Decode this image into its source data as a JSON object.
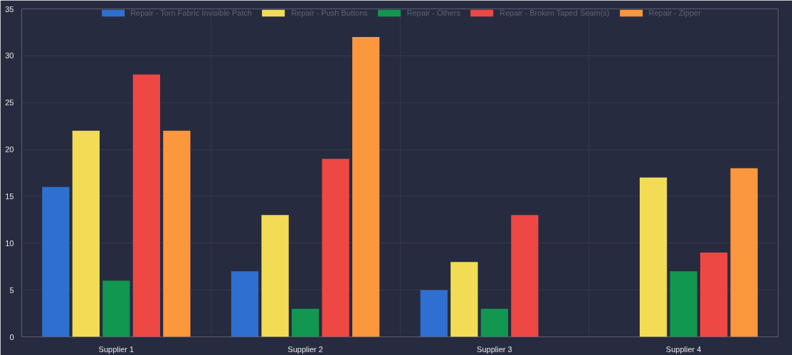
{
  "chart_data": {
    "type": "bar",
    "categories": [
      "Supplier 1",
      "Supplier 2",
      "Supplier 3",
      "Supplier 4"
    ],
    "series": [
      {
        "name": "Repair - Torn Fabric Invisible Patch",
        "color": "#2f6fcf",
        "values": [
          16,
          7,
          5,
          null
        ]
      },
      {
        "name": "Repair - Push Buttons",
        "color": "#f2dc55",
        "values": [
          22,
          13,
          8,
          17
        ]
      },
      {
        "name": "Repair - Others",
        "color": "#11974f",
        "values": [
          6,
          3,
          3,
          7
        ]
      },
      {
        "name": "Repair - Broken Taped Seam(s)",
        "color": "#ee4844",
        "values": [
          28,
          19,
          13,
          9
        ]
      },
      {
        "name": "Repair - Zipper",
        "color": "#fb973c",
        "values": [
          22,
          32,
          null,
          18
        ]
      }
    ],
    "ylim": [
      0,
      35
    ],
    "yticks": [
      0,
      5,
      10,
      15,
      20,
      25,
      30,
      35
    ],
    "grid": true,
    "legend": "top"
  }
}
